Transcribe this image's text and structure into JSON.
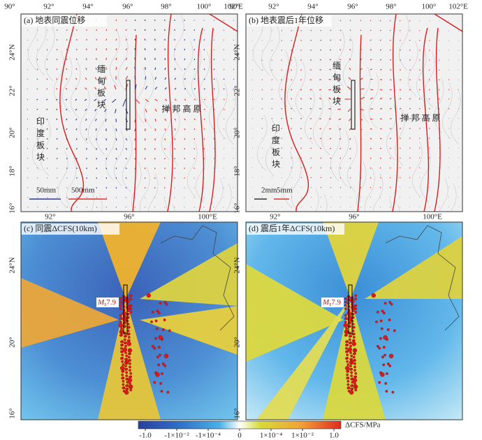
{
  "panels": [
    {
      "title": "(a) 地表同震位移",
      "top_ticks": [
        "90°",
        "92°",
        "94°",
        "96°",
        "98°",
        "100°",
        "102°E"
      ],
      "left_ticks": [
        "24°N",
        "22°",
        "20°",
        "18°",
        "16°"
      ],
      "bottom_ticks": [
        "92°",
        "96°",
        "100°E"
      ],
      "labels": {
        "burma": "缅甸板块",
        "india": "印度板块",
        "shan": "掸 邦 高 原"
      },
      "legend": [
        "50mm",
        "500mm"
      ]
    },
    {
      "title": "(b) 地表震后1年位移",
      "top_ticks": [
        "90°",
        "92°",
        "94°",
        "96°",
        "98°",
        "100°",
        "102°E"
      ],
      "left_ticks": [
        "24°N",
        "22°",
        "20°",
        "18°",
        "16°"
      ],
      "bottom_ticks": [
        "92°",
        "96°",
        "100°E"
      ],
      "labels": {
        "burma": "缅甸板块",
        "india": "印度板块",
        "shan": "掸 邦 高 原"
      },
      "legend": [
        "2mm",
        "5mm"
      ]
    },
    {
      "title": "(c) 同震ΔCFS(10km)",
      "left_ticks": [
        "24°N",
        "20°",
        "16°"
      ],
      "magnitude": {
        "symbol": "M",
        "sub": "s",
        "value": "7.9"
      }
    },
    {
      "title": "(d) 震后1年ΔCFS(10km)",
      "left_ticks": [
        "24°N",
        "20°",
        "16°"
      ],
      "magnitude": {
        "symbol": "M",
        "sub": "s",
        "value": "7.9"
      }
    }
  ],
  "colorbar": {
    "ticks": [
      "-1.0",
      "-1×10⁻²",
      "-1×10⁻⁴",
      "0",
      "1×10⁻⁴",
      "1×10⁻²",
      "1.0"
    ],
    "label": "ΔCFS/MPa"
  }
}
